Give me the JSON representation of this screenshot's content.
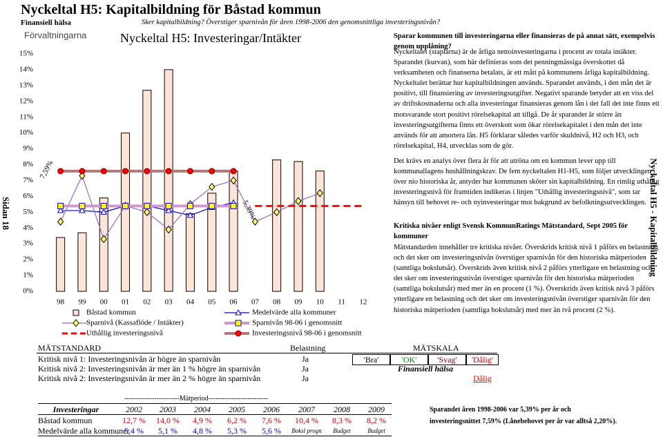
{
  "header": {
    "title": "Nyckeltal H5: Kapitalbildning för Båstad kommun",
    "section": "Finansiell hälsa",
    "subtitle": "Sker kapitalbildning? Överstiger sparnivån för åren 1998-2006 den genomsnittliga investeringsnivån?",
    "page": "Sidan 18",
    "side": "Nyckeltal H5 - Kapitalbildning"
  },
  "chart_data": {
    "type": "combo",
    "title": "Nyckeltal H5: Investeringar/Intäkter",
    "subtitle": "Förvaltningarna",
    "categories": [
      "98",
      "99",
      "00",
      "01",
      "02",
      "03",
      "04",
      "05",
      "06",
      "07",
      "08",
      "09",
      "10",
      "11",
      "12"
    ],
    "ylim": [
      0,
      15
    ],
    "yticks": [
      {
        "value": 0,
        "label": "0%"
      },
      {
        "value": 1,
        "label": "1%"
      },
      {
        "value": 2,
        "label": "2%"
      },
      {
        "value": 3,
        "label": "3%"
      },
      {
        "value": 4,
        "label": "4%"
      },
      {
        "value": 5,
        "label": "5%"
      },
      {
        "value": 6,
        "label": "6%"
      },
      {
        "value": 7,
        "label": "7%"
      },
      {
        "value": 8,
        "label": "8%"
      },
      {
        "value": 9,
        "label": "9%"
      },
      {
        "value": 10,
        "label": "10%"
      },
      {
        "value": 11,
        "label": "11%"
      },
      {
        "value": 12,
        "label": "12%"
      },
      {
        "value": 13,
        "label": "13%"
      },
      {
        "value": 14,
        "label": "14%"
      },
      {
        "value": 15,
        "label": "15%"
      }
    ],
    "series": [
      {
        "name": "Båstad kommun",
        "type": "bar",
        "color": "#fce4d6",
        "values": [
          3.4,
          3.7,
          5.9,
          10.0,
          12.7,
          14.0,
          4.9,
          6.2,
          7.6,
          null,
          8.3,
          8.2,
          7.6,
          null,
          null
        ]
      },
      {
        "name": "Medelvärde alla kommuner",
        "type": "line",
        "color": "#0000cc",
        "marker": "triangle",
        "marker_color": "#ffffff",
        "values": [
          5.1,
          5.1,
          5.0,
          5.4,
          5.4,
          5.1,
          4.8,
          5.3,
          5.6,
          null,
          null,
          null,
          null,
          null,
          null
        ]
      },
      {
        "name": "Sparnivå (Kassaflöde / Intäkter)",
        "type": "line",
        "color": "#9966cc",
        "marker": "diamond",
        "marker_color": "#ffff66",
        "values": [
          4.4,
          7.3,
          3.3,
          5.4,
          5.0,
          3.9,
          5.5,
          6.6,
          7.0,
          4.4,
          5.0,
          5.7,
          6.2,
          null,
          null
        ]
      },
      {
        "name": "Sparnivån 98-06 i genomsnitt",
        "type": "line",
        "color": "#cc99cc",
        "width": 4,
        "marker": "square",
        "marker_color": "#ffff00",
        "values": [
          5.39,
          5.39,
          5.39,
          5.39,
          5.39,
          5.39,
          5.39,
          5.39,
          5.39,
          null,
          null,
          null,
          null,
          null,
          null
        ]
      },
      {
        "name": "Uthållig investeringsnivå",
        "type": "line",
        "color": "#ff0000",
        "width": 3,
        "dashed": true,
        "values": [
          null,
          null,
          null,
          null,
          null,
          null,
          null,
          null,
          null,
          5.39,
          5.39,
          5.39,
          5.39,
          5.39,
          5.39
        ]
      },
      {
        "name": "Investeringsnivå 98-06 i genomsnitt",
        "type": "line",
        "color": "#b07878",
        "width": 4,
        "marker": "circle",
        "marker_color": "#ff0000",
        "values": [
          7.59,
          7.59,
          7.59,
          7.59,
          7.59,
          7.59,
          7.59,
          7.59,
          7.59,
          null,
          null,
          null,
          null,
          null,
          null
        ]
      }
    ],
    "annotations": [
      "7,59%",
      "5,39%"
    ]
  },
  "text": {
    "paragraphs": [
      "Sparar kommunen till investeringarna eller finansieras de på annat sätt, exempelvis genom upplåning?",
      "Nyckeltalet (staplarna) är de årliga nettoinvesteringarna i procent av totala intäkter. Sparandet (kurvan), som här definieras som det penningmässiga överskottet då verksamheten och finanserna betalats, är ett mått på kommunens årliga kapitalbildning. Nyckeltalet berättar hur kapitalbildningen används. Sparandet används, i den mån det är positivt, till finansiering av investeringsutgifter. Negativt sparande betyder att en viss del av driftskostnaderna och alla investeringar finansieras genom lån i det fall det inte finns ett motsvarande stort positivt rörelsekapital att tillgå. De år sparandet är större än investeringsutgifterna finns ett överskott som ökar rörelsekapitalet i den mån det inte används för att amortera lån. H5 förklarar således varför skuldnivå, H2 och H3, och rörelsekapital, H4, utvecklas som de gör.",
      "Det krävs en analys över flera år för att utröna om en kommun lever upp till kommunallagens hushållningskrav. De fem nyckeltalen H1-H5, som följer utvecklingen över nio historiska år, antyder hur kommunen sköter sin kapitalbildning. En rimlig uthållig investeringsnivå för framtiden indikeras i linjen \"Uthållig investeringsnivå\", som tar hänsyn till behovet re- och nyinvesteringar mot bakgrund av befolkningsutvecklingen.",
      "Kritiska nivåer enligt Svensk KommunRatings Mätstandard, Sept 2005 för kommuner",
      "Mätstandarden innehåller tre kritiska nivåer. Överskrids kritisk nivå 1 påförs en belastning och det sker om investeringsnivån överstiger sparnivån för den historiska mätperioden (samtliga bokslutsår). Överskrids även kritisk nivå 2 påförs ytterligare en belastning och det sker om investeringsnivån överstiger sparnivån för den historiska mätperioden (samtliga bokslutsår) med mer än en procent (1 %). Överskrids även kritisk nivå 3 påförs ytterligare en belastning och det sker om investeringsnivån överstiger sparnivån för den historiska mätperioden (samtliga bokslutsår) med mer än två procent (2 %)."
    ]
  },
  "standard": {
    "header": [
      "MÄTSTANDARD",
      "Belastning",
      "MÄTSKALA"
    ],
    "rows": [
      [
        "Kritisk nivå 1: Investeringsnivån är högre än sparnivån",
        "Ja"
      ],
      [
        "Kritisk nivå 2: Investeringsnivån är mer än 1 % högre än sparnivån",
        "Ja"
      ],
      [
        "Kritisk nivå 2: Investeringsnivån är mer än 2 % högre än sparnivån",
        "Ja"
      ]
    ],
    "scale": [
      "'Bra'",
      "'OK'",
      "'Svag'",
      "'Dålig'"
    ],
    "scale_title": "Finansiell hälsa",
    "result": "Dålig"
  },
  "period_table": {
    "period": "------------------------Mätperiod--------------------------",
    "header": [
      "Investeringar",
      "2002",
      "2003",
      "2004",
      "2005",
      "2006",
      "2007",
      "2008",
      "2009"
    ],
    "rows": [
      [
        "Båstad kommun",
        "12,7 %",
        "14,0 %",
        "4,9 %",
        "6,2 %",
        "7,6 %",
        "10,4 %",
        "8,3 %",
        "8,2 %"
      ],
      [
        "Medelvärde alla kommuner",
        "5,4 %",
        "5,1 %",
        "4,8 %",
        "5,3 %",
        "5,6 %",
        "Boksl progn",
        "Budget",
        "Budget"
      ]
    ]
  },
  "notes": [
    "Sparandet åren 1998-2006 var 5,39% per år och",
    "investeringsnittet 7,59% (Lånebehovet per år var alltså 2,20%)."
  ]
}
